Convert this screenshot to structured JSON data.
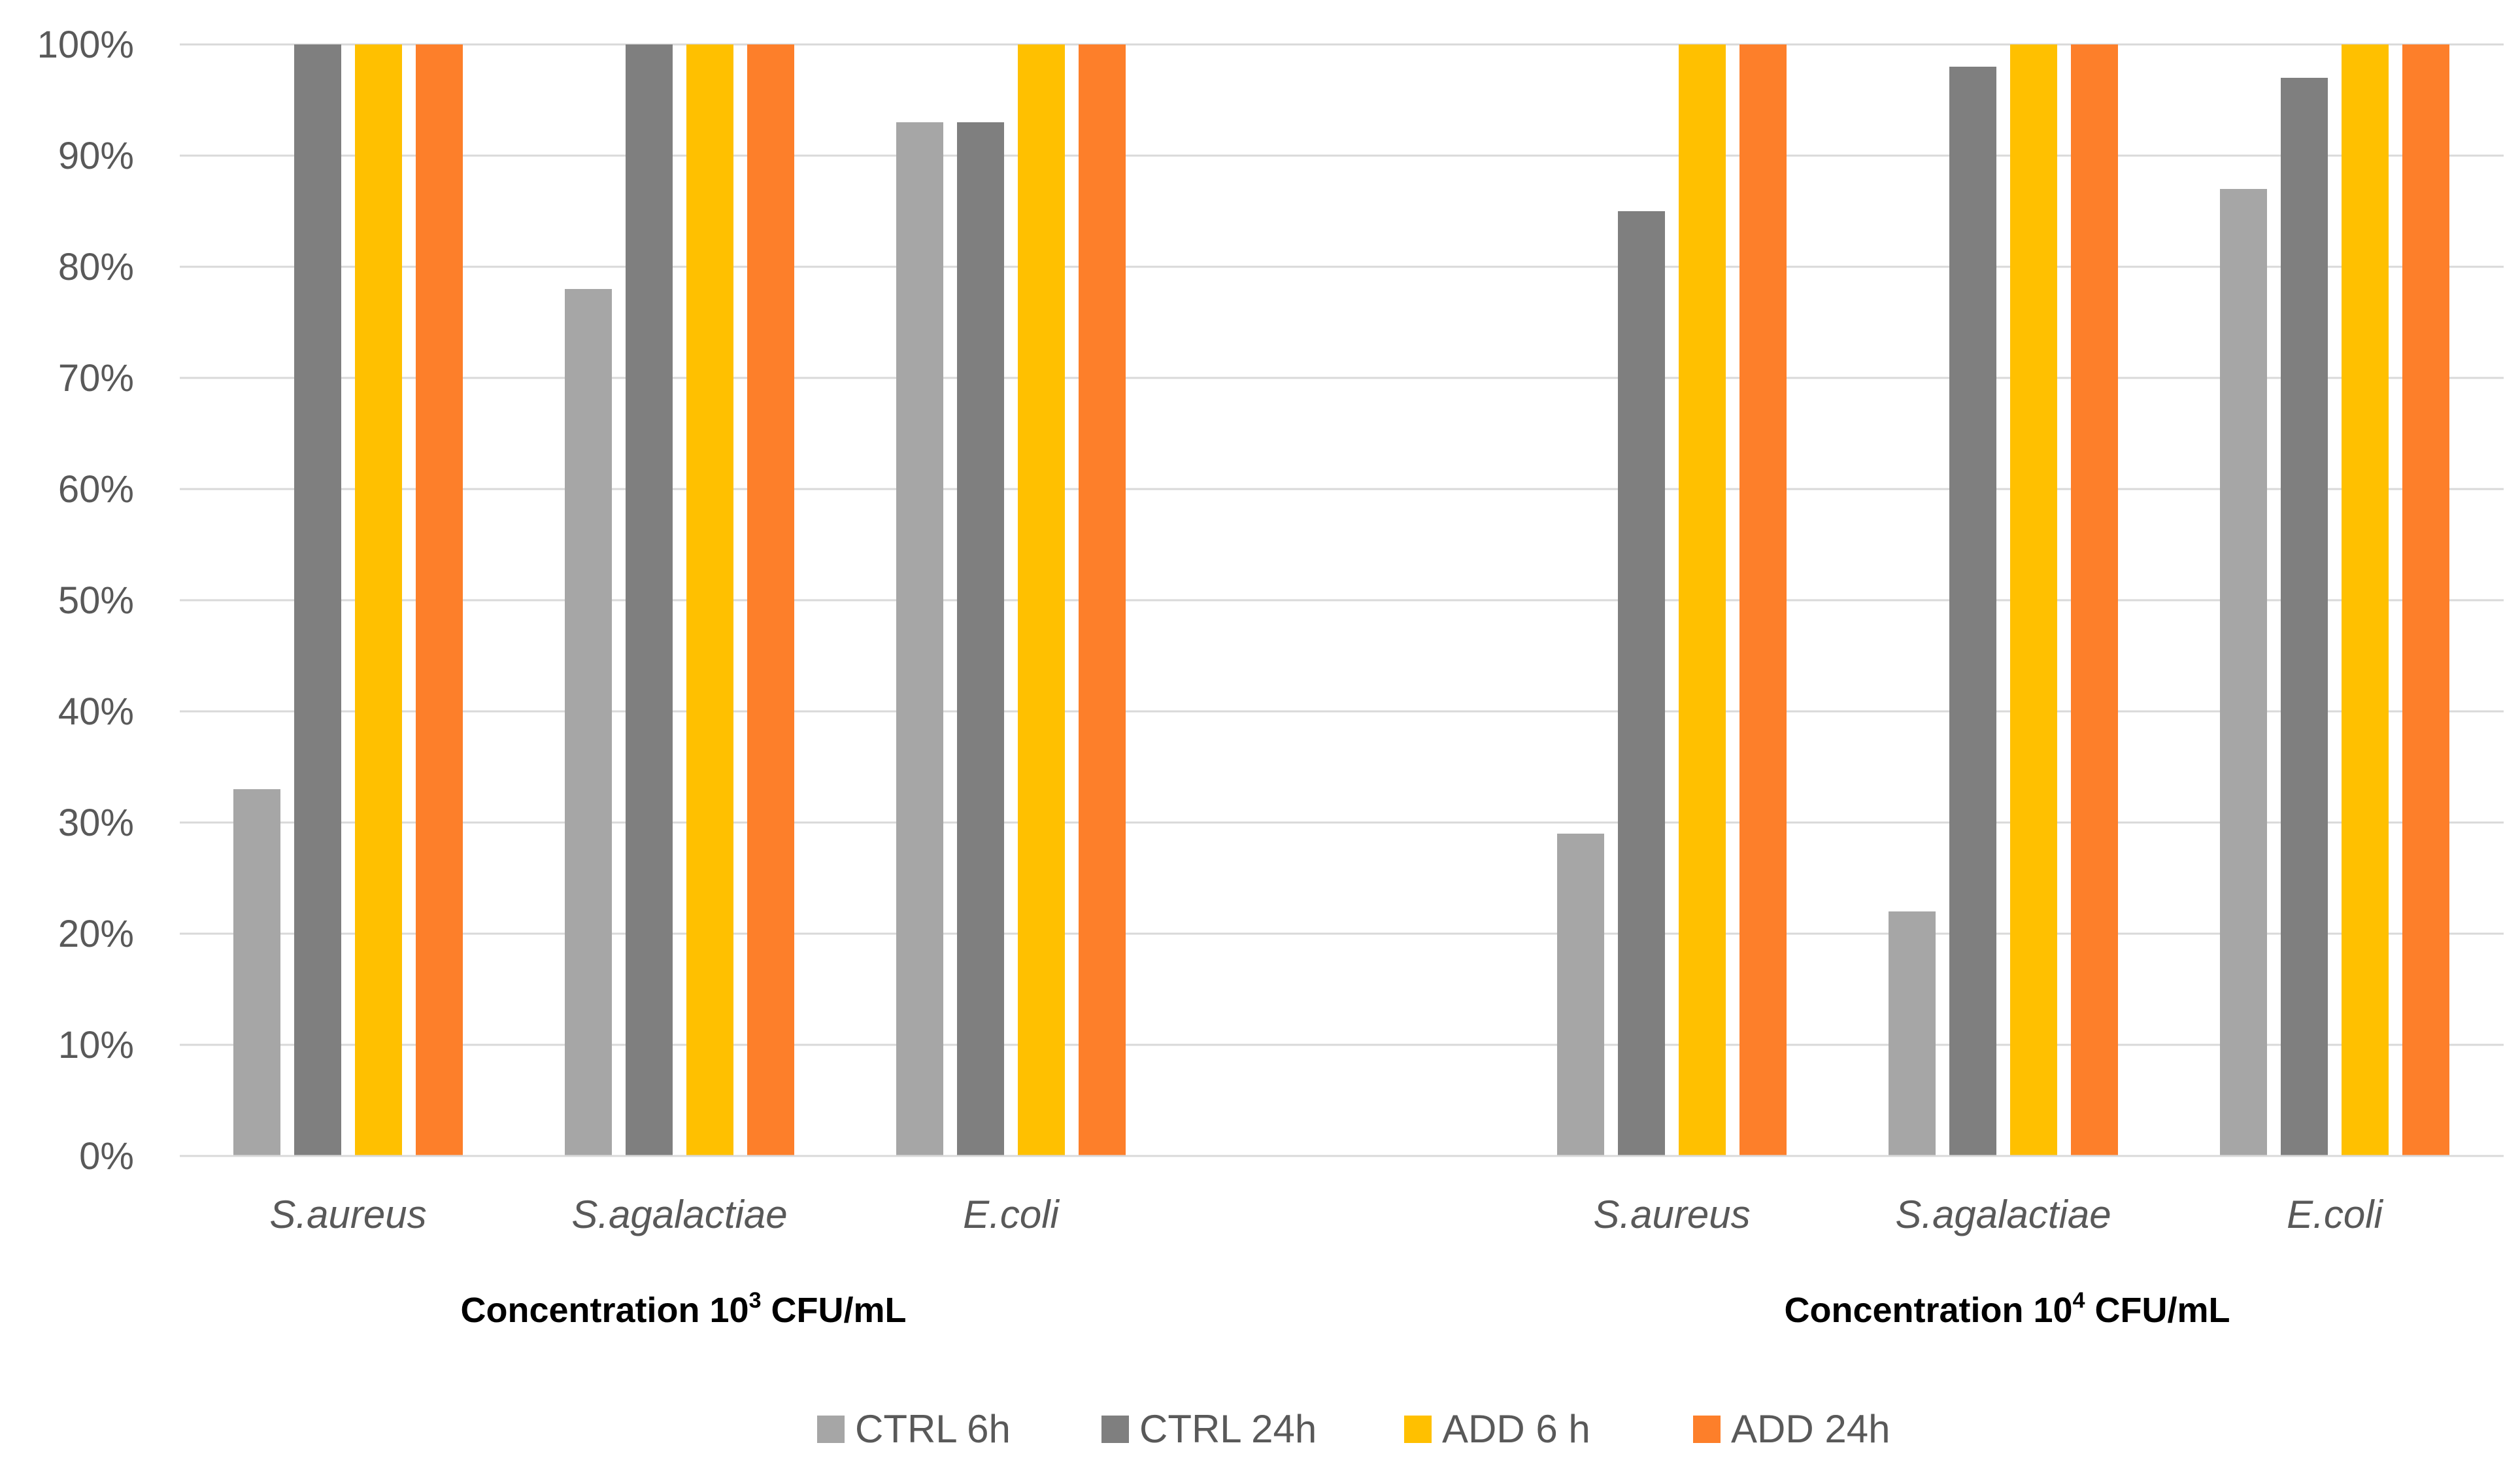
{
  "chart_data": {
    "type": "bar",
    "title": "",
    "xlabel": "",
    "ylabel": "",
    "ylim": [
      0,
      100
    ],
    "yticks": [
      "0%",
      "10%",
      "20%",
      "30%",
      "40%",
      "50%",
      "60%",
      "70%",
      "80%",
      "90%",
      "100%"
    ],
    "grid": true,
    "legend_position": "bottom",
    "groups": [
      {
        "label_prefix": "Concentration 10",
        "label_sup": "3",
        "label_suffix": " CFU/mL",
        "categories": [
          "S.aureus",
          "S.agalactiae",
          "E.coli"
        ]
      },
      {
        "label_prefix": "Concentration 10",
        "label_sup": "4",
        "label_suffix": " CFU/mL",
        "categories": [
          "S.aureus",
          "S.agalactiae",
          "E.coli"
        ]
      }
    ],
    "series": [
      {
        "name": "CTRL 6h",
        "color": "#a6a6a6",
        "values": [
          [
            33,
            78,
            93
          ],
          [
            29,
            22,
            87
          ]
        ]
      },
      {
        "name": "CTRL 24h",
        "color": "#7f7f7f",
        "values": [
          [
            100,
            100,
            93
          ],
          [
            85,
            98,
            97
          ]
        ]
      },
      {
        "name": "ADD 6 h",
        "color": "#ffc000",
        "values": [
          [
            100,
            100,
            100
          ],
          [
            100,
            100,
            100
          ]
        ]
      },
      {
        "name": "ADD 24h",
        "color": "#fd7f2a",
        "values": [
          [
            100,
            100,
            100
          ],
          [
            100,
            100,
            100
          ]
        ]
      }
    ]
  }
}
